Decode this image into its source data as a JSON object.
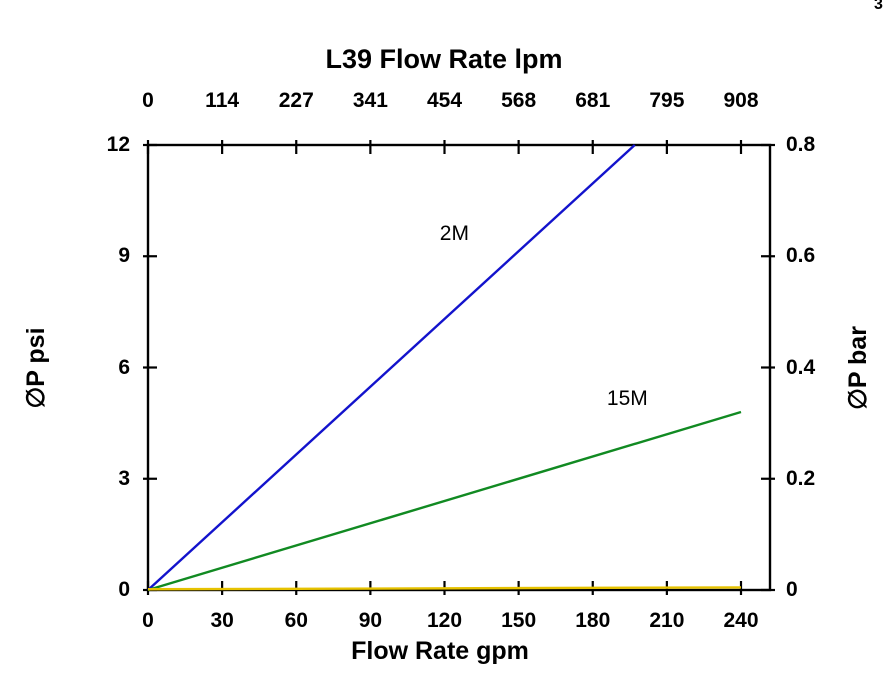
{
  "page": {
    "background": "#ffffff",
    "corner_mark": "3"
  },
  "chart_data": {
    "type": "line",
    "title": "L39 Flow Rate lpm",
    "title_top": "L39 Flow Rate lpm",
    "xlabel_bottom": "Flow Rate gpm",
    "ylabel_left": "∅P psi",
    "ylabel_right": "∅P bar",
    "x_gpm_ticks": [
      0,
      30,
      60,
      90,
      120,
      150,
      180,
      210,
      240
    ],
    "x_lpm_ticks": [
      "0",
      "114",
      "227",
      "341",
      "454",
      "568",
      "681",
      "795",
      "908"
    ],
    "y_psi_ticks": [
      0,
      3,
      6,
      9,
      12
    ],
    "y_bar_ticks": [
      "0",
      "0.2",
      "0.4",
      "0.6",
      "0.8"
    ],
    "xlim_gpm": [
      0,
      252
    ],
    "ylim_psi": [
      0,
      12
    ],
    "ylim_bar": [
      0,
      0.8
    ],
    "grid": false,
    "legend": "inline-labels",
    "frame_color": "#000000",
    "series": [
      {
        "name": "2M",
        "color": "#1313cc",
        "points": [
          [
            0,
            0
          ],
          [
            197,
            12
          ]
        ],
        "label_at": [
          124,
          9.6
        ]
      },
      {
        "name": "15M",
        "color": "#118a22",
        "points": [
          [
            0,
            0
          ],
          [
            240,
            4.8
          ]
        ],
        "label_at": [
          194,
          5.15
        ]
      },
      {
        "name": "",
        "color": "#e6c200",
        "points": [
          [
            0,
            0.02
          ],
          [
            240,
            0.07
          ]
        ]
      }
    ]
  }
}
